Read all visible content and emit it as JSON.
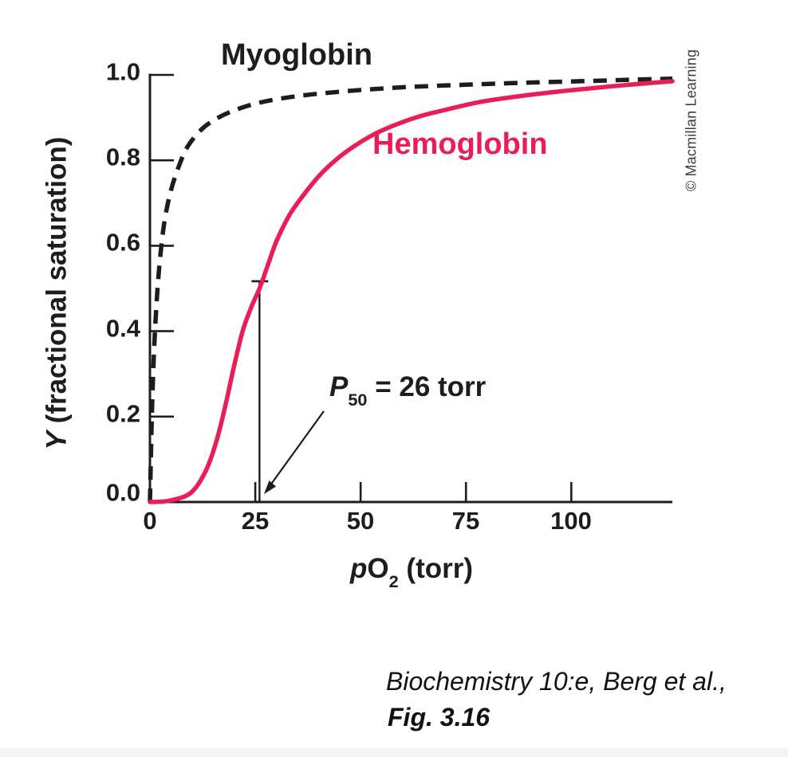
{
  "figure": {
    "myoglobin_label": "Myoglobin",
    "hemoglobin_label": "Hemoglobin",
    "copyright": "© Macmillan Learning",
    "caption_line1": "Biochemistry 10:e, Berg et al.,",
    "caption_line2": "Fig. 3.16"
  },
  "chart_data": {
    "type": "line",
    "title": "",
    "xlabel_parts": {
      "p": "p",
      "main": "O",
      "sub": "2",
      "rest": " (torr)"
    },
    "ylabel_parts": {
      "y": "Y",
      "rest": " (fractional saturation)"
    },
    "xlim": [
      0,
      124
    ],
    "ylim": [
      0,
      1.0
    ],
    "x_ticks": [
      0,
      25,
      50,
      75,
      100
    ],
    "x_tick_labels": [
      "0",
      "25",
      "50",
      "75",
      "100"
    ],
    "y_ticks": [
      0,
      0.2,
      0.4,
      0.6,
      0.8,
      1.0
    ],
    "y_tick_labels": [
      "0.0",
      "0.2",
      "0.4",
      "0.6",
      "0.8",
      "1.0"
    ],
    "grid": false,
    "legend": "inline-labels",
    "p50_label": {
      "p": "P",
      "sub": "50",
      "rest": " = 26 torr"
    },
    "p50_torr": 26,
    "p50_marker_y": 0.517,
    "series": [
      {
        "name": "Myoglobin",
        "style": "dashed",
        "color": "#1d1d1f",
        "points": [
          [
            0,
            0
          ],
          [
            0.4,
            0.18
          ],
          [
            0.8,
            0.31
          ],
          [
            1.2,
            0.4
          ],
          [
            1.8,
            0.5
          ],
          [
            2.5,
            0.58
          ],
          [
            3.5,
            0.66
          ],
          [
            5,
            0.73
          ],
          [
            7,
            0.79
          ],
          [
            9,
            0.833
          ],
          [
            12,
            0.87
          ],
          [
            15,
            0.893
          ],
          [
            19,
            0.913
          ],
          [
            24,
            0.93
          ],
          [
            30,
            0.943
          ],
          [
            38,
            0.954
          ],
          [
            48,
            0.963
          ],
          [
            60,
            0.971
          ],
          [
            75,
            0.977
          ],
          [
            90,
            0.982
          ],
          [
            105,
            0.986
          ],
          [
            115,
            0.989
          ],
          [
            124,
            0.991
          ]
        ]
      },
      {
        "name": "Hemoglobin",
        "style": "solid",
        "color": "#ea1e56",
        "points": [
          [
            0,
            0
          ],
          [
            3,
            0.001
          ],
          [
            5,
            0.004
          ],
          [
            8,
            0.012
          ],
          [
            10,
            0.024
          ],
          [
            12,
            0.05
          ],
          [
            14,
            0.09
          ],
          [
            16,
            0.15
          ],
          [
            18,
            0.23
          ],
          [
            20,
            0.32
          ],
          [
            22,
            0.4
          ],
          [
            24,
            0.455
          ],
          [
            26,
            0.5
          ],
          [
            28,
            0.555
          ],
          [
            30,
            0.61
          ],
          [
            33,
            0.67
          ],
          [
            36,
            0.713
          ],
          [
            40,
            0.762
          ],
          [
            44,
            0.8
          ],
          [
            48,
            0.83
          ],
          [
            53,
            0.86
          ],
          [
            58,
            0.882
          ],
          [
            64,
            0.903
          ],
          [
            70,
            0.918
          ],
          [
            78,
            0.936
          ],
          [
            86,
            0.948
          ],
          [
            95,
            0.959
          ],
          [
            105,
            0.969
          ],
          [
            115,
            0.978
          ],
          [
            124,
            0.985
          ]
        ]
      }
    ]
  }
}
